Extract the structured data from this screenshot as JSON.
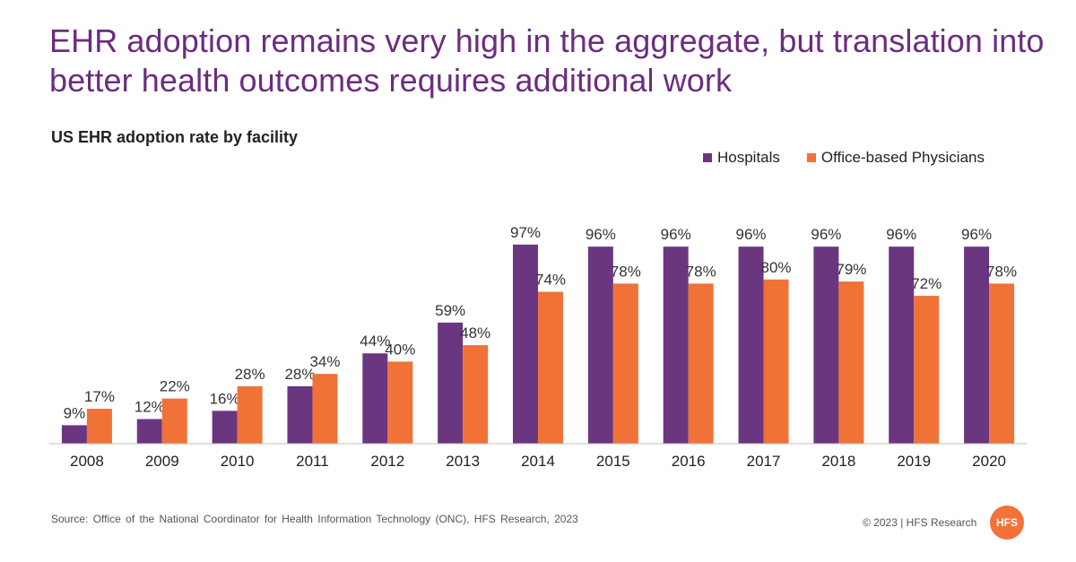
{
  "headline": "EHR adoption remains very high in the aggregate, but translation into better health outcomes requires additional work",
  "colors": {
    "hospitals": "#6b3680",
    "physicians": "#f07236",
    "headline": "#6b2d7f",
    "logo": "#f37239"
  },
  "chart_data": {
    "type": "bar",
    "title": "US EHR adoption rate by facility",
    "legend_position": "top-right",
    "grid": false,
    "ylim": [
      0,
      100
    ],
    "categories": [
      "2008",
      "2009",
      "2010",
      "2011",
      "2012",
      "2013",
      "2014",
      "2015",
      "2016",
      "2017",
      "2018",
      "2019",
      "2020"
    ],
    "series": [
      {
        "name": "Hospitals",
        "values": [
          9,
          12,
          16,
          28,
          44,
          59,
          97,
          96,
          96,
          96,
          96,
          96,
          96
        ],
        "labels": [
          "9%",
          "12%",
          "16%",
          "28%",
          "44%",
          "59%",
          "97%",
          "96%",
          "96%",
          "96%",
          "96%",
          "96%",
          "96%"
        ]
      },
      {
        "name": "Office-based Physicians",
        "values": [
          17,
          22,
          28,
          34,
          40,
          48,
          74,
          78,
          78,
          80,
          79,
          72,
          78
        ],
        "labels": [
          "17%",
          "22%",
          "28%",
          "34%",
          "40%",
          "48%",
          "74%",
          "78%",
          "78%",
          "80%",
          "79%",
          "72%",
          "78%"
        ]
      }
    ]
  },
  "footer": {
    "source": "Source: Office of the National Coordinator for Health Information Technology (ONC), HFS Research, 2023",
    "copyright": "© 2023 | HFS Research",
    "logo": "HFS"
  }
}
